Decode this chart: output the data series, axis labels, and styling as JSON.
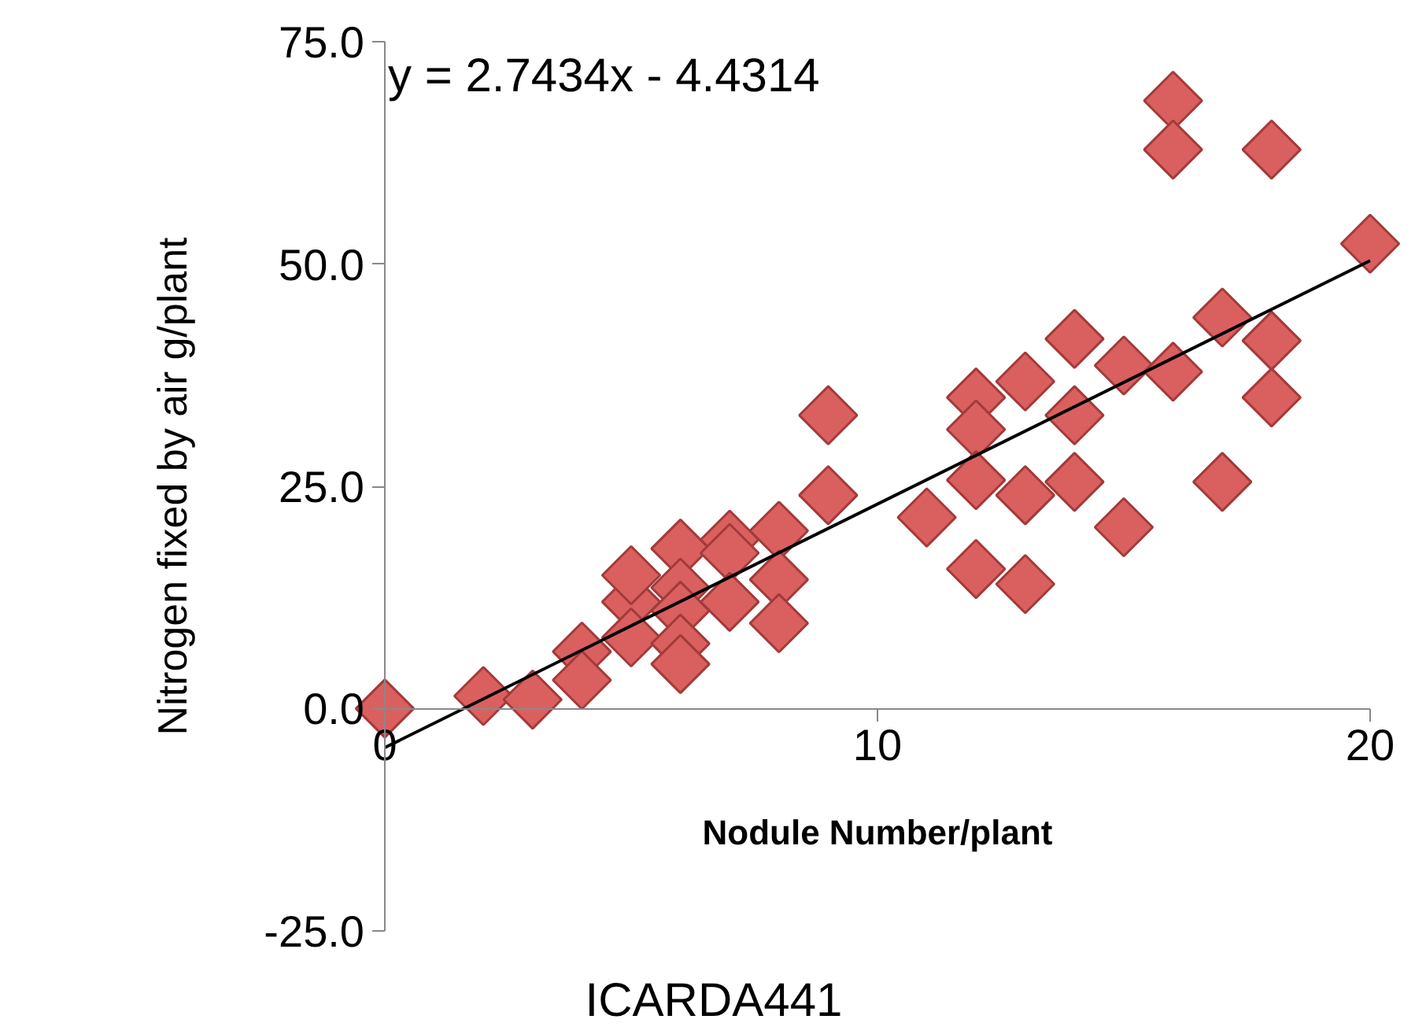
{
  "chart_data": {
    "type": "scatter",
    "xlabel": "Nodule Number/plant",
    "ylabel": "Nitrogen fixed by air g/plant",
    "annotations": [
      "y = 2.7434x - 4.4314",
      "ICARDA441"
    ],
    "xlim": [
      0,
      20
    ],
    "xticks": [
      0,
      10,
      20
    ],
    "ylim": [
      -25,
      75
    ],
    "yticks": [
      {
        "value": -25,
        "label": "-25.0"
      },
      {
        "value": 0,
        "label": "0.0"
      },
      {
        "value": 25,
        "label": "25.0"
      },
      {
        "value": 50,
        "label": "50.0"
      },
      {
        "value": 75,
        "label": "75.0"
      }
    ],
    "grid": false,
    "marker": "diamond",
    "series": [
      {
        "color": "#d9605f",
        "x": [
          0,
          2,
          3,
          4,
          4,
          5,
          5,
          5,
          6,
          6,
          6,
          6,
          6,
          7,
          7,
          7,
          8,
          8,
          8,
          9,
          9,
          11,
          12,
          12,
          12,
          12,
          13,
          13,
          13,
          14,
          14,
          14,
          15,
          15,
          16,
          16,
          16,
          17,
          17,
          18,
          18,
          18,
          20
        ],
        "values": [
          0,
          1.4,
          1,
          6.4,
          3.2,
          12,
          15,
          8,
          18,
          13.6,
          11,
          7.3,
          5,
          19,
          17.5,
          12,
          20,
          14.5,
          9.6,
          33,
          24,
          21.5,
          35,
          31.4,
          25.7,
          15.7,
          36.8,
          24,
          14,
          41.6,
          33,
          25.5,
          38.6,
          20.4,
          68.4,
          62.9,
          37.9,
          44,
          25.5,
          62.9,
          41.4,
          35,
          52.3
        ]
      },
      {
        "type": "line",
        "color": "#000000",
        "x": [
          0,
          20
        ],
        "values": [
          -4.4,
          50.4
        ],
        "marker": "none"
      }
    ]
  }
}
